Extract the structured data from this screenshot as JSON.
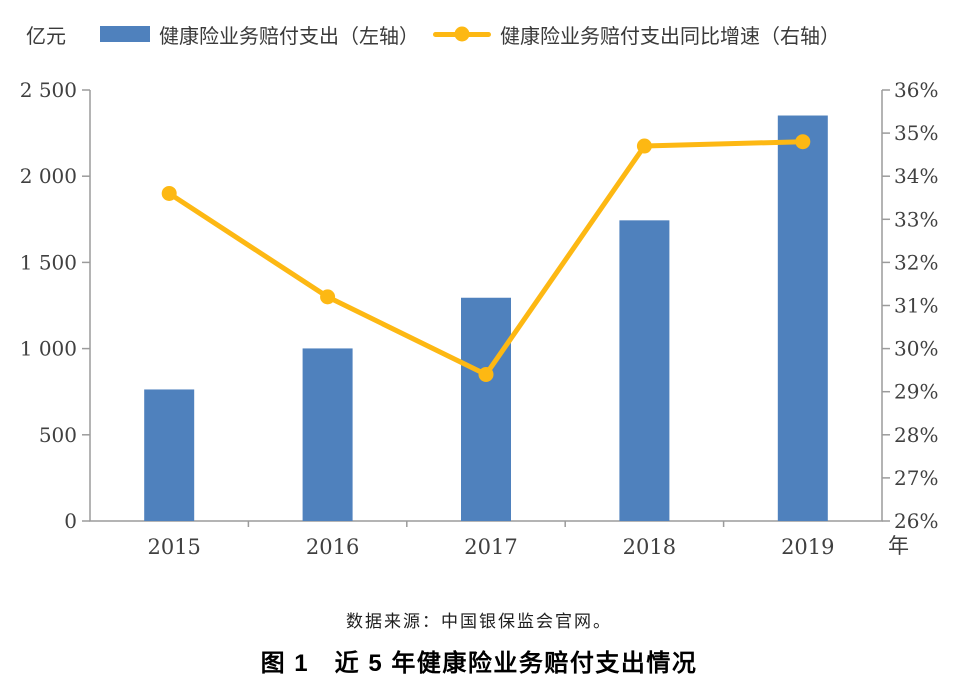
{
  "figure": {
    "unit_label": "亿元",
    "x_axis_unit": "年",
    "source_note": "数据来源：中国银保监会官网。",
    "caption": "图 1　近 5 年健康险业务赔付支出情况"
  },
  "chart_data": {
    "type": "bar",
    "subtype": "bar+line combo, dual axis",
    "categories": [
      "2015",
      "2016",
      "2017",
      "2018",
      "2019"
    ],
    "series": [
      {
        "name": "健康险业务赔付支出（左轴）",
        "type": "bar",
        "axis": "left",
        "color": "#4F81BD",
        "values": [
          763,
          1001,
          1295,
          1744,
          2352
        ]
      },
      {
        "name": "健康险业务赔付支出同比增速（右轴）",
        "type": "line",
        "axis": "right",
        "color": "#FDB813",
        "values": [
          33.6,
          31.2,
          29.4,
          34.7,
          34.8
        ]
      }
    ],
    "left_axis": {
      "min": 0,
      "max": 2500,
      "step": 500,
      "tick_labels": [
        "0",
        "500",
        "1 000",
        "1 500",
        "2 000",
        "2 500"
      ]
    },
    "right_axis": {
      "min": 26,
      "max": 36,
      "step": 1,
      "suffix": "%"
    },
    "grid": false,
    "legend_position": "top"
  }
}
